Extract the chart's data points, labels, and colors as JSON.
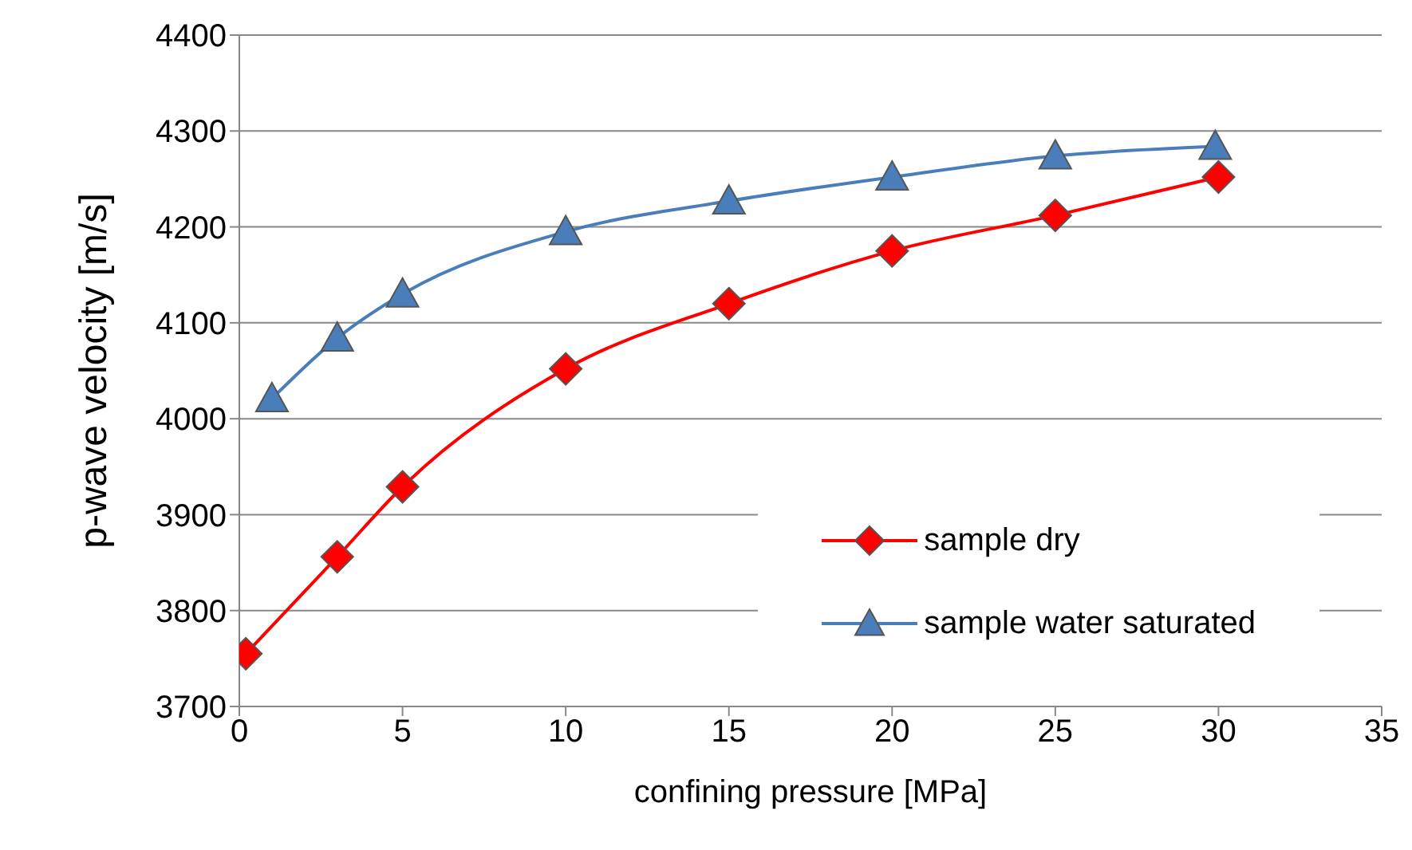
{
  "chart_data": {
    "type": "line",
    "xlabel": "confining pressure [MPa]",
    "ylabel": "p-wave velocity [m/s]",
    "xlim": [
      0,
      35
    ],
    "xticks": [
      0,
      5,
      10,
      15,
      20,
      25,
      30,
      35
    ],
    "ylim": [
      3700,
      4400
    ],
    "yticks": [
      3700,
      3800,
      3900,
      4000,
      4100,
      4200,
      4300,
      4400
    ],
    "grid": "y",
    "legend": "bottom right",
    "line_style": "solid",
    "series": [
      {
        "name": "sample dry",
        "color": "#ff0000",
        "marker": "diamond",
        "x": [
          0.2,
          3,
          5,
          10,
          15,
          20,
          25,
          30
        ],
        "values": [
          3755,
          3856,
          3929,
          4052,
          4120,
          4175,
          4212,
          4252
        ]
      },
      {
        "name": "sample water saturated",
        "color": "#4a7ebb",
        "marker": "triangle",
        "x": [
          1,
          3,
          5,
          10,
          15,
          20,
          25,
          29.9
        ],
        "values": [
          4021,
          4084,
          4130,
          4195,
          4227,
          4252,
          4274,
          4284
        ]
      }
    ]
  }
}
